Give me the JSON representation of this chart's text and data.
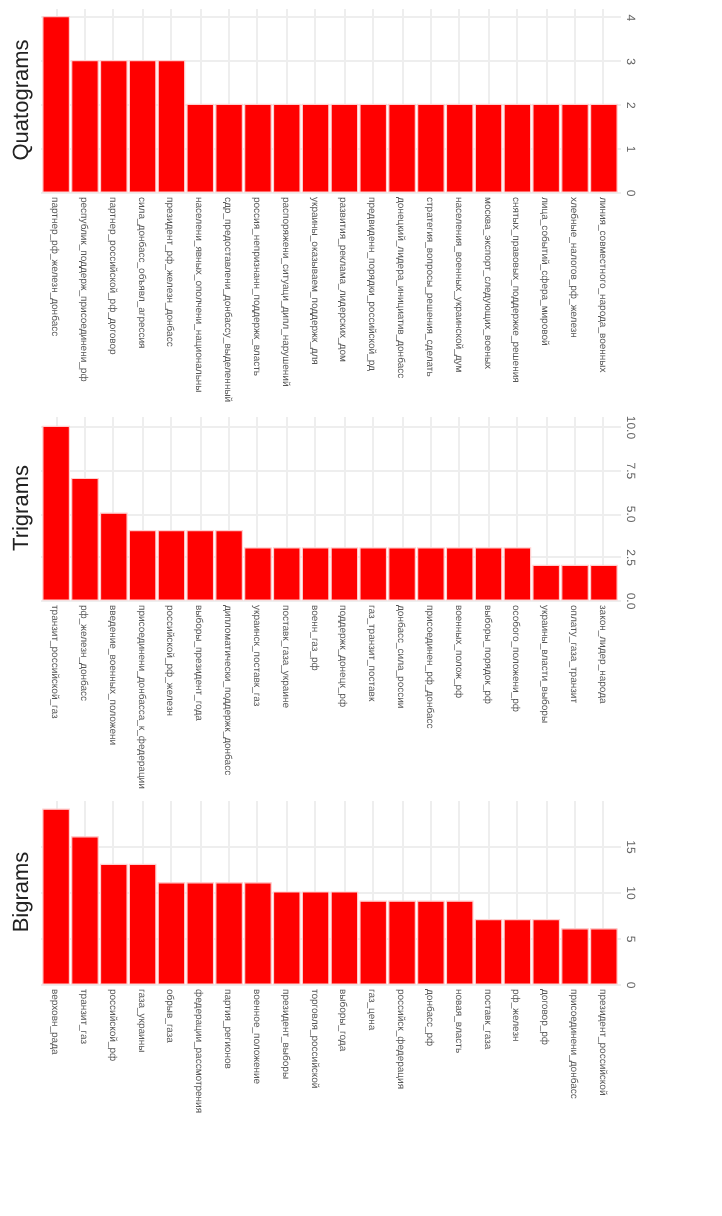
{
  "chart_data": [
    {
      "type": "bar",
      "title": "Quatograms",
      "categories": [
        "партнер_рф_железн_донбасс",
        "республик_поддерж_присоединени_рф",
        "партнер_российской_рф_договор",
        "сила_донбасс_объявл_агрессия",
        "президент_рф_железн_донбасс",
        "населени_явных_ополчени_национальны",
        "сдр_предоставлени_донбассу_выделенный",
        "россия_непризнанн_поддержк_власть",
        "распоряжени_ситуаци_дипл_нарушений",
        "украины_оказываем_поддержк_для",
        "развития_реклама_лидерских_дом",
        "предвиденн_порядки_российской_рд",
        "донецкий_лидера_инициатив_донбасс",
        "стратегия_вопросы_решения_сделать",
        "населения_военных_украинской_дум",
        "москва_экспорт_следующих_военых",
        "снятых_правовых_поддержке_решения",
        "лица_событий_сфера_мировой",
        "хлебные_налогов_рф_железн",
        "линия_совместного_народа_военных"
      ],
      "values": [
        4,
        3,
        3,
        3,
        3,
        2,
        2,
        2,
        2,
        2,
        2,
        2,
        2,
        2,
        2,
        2,
        2,
        2,
        2,
        2
      ],
      "color": "#ff0000",
      "ylim": [
        0,
        4.2
      ],
      "yticks": [
        0,
        1,
        2,
        3,
        4
      ],
      "grid": true
    },
    {
      "type": "bar",
      "title": "Trigrams",
      "categories": [
        "транзит_российской_газ",
        "рф_железн_донбасс",
        "введение_военных_положени",
        "присоединени_донбасса_к_федерации",
        "российской_рф_железн",
        "выборы_президент_года",
        "дипломатически_поддержк_донбасс",
        "украинск_поставк_газ",
        "поставк_газа_украине",
        "военн_газ_рф",
        "поддержк_донецк_рф",
        "газ_транзит_поставк",
        "донбасс_сила_россии",
        "присоединен_рф_донбасс",
        "военных_полож_рф",
        "выборы_порядок_рф",
        "особого_положени_рф",
        "украины_власти_выборы",
        "оплату_газа_транзит",
        "закон_лидер_народа"
      ],
      "values": [
        10,
        7,
        5,
        4,
        4,
        4,
        4,
        3,
        3,
        3,
        3,
        3,
        3,
        3,
        3,
        3,
        3,
        2,
        2,
        2
      ],
      "color": "#ff0000",
      "ylim": [
        0,
        10.6
      ],
      "yticks": [
        {
          "value": 0,
          "label": "0.0"
        },
        {
          "value": 2.5,
          "label": "2.5"
        },
        {
          "value": 5,
          "label": "5.0"
        },
        {
          "value": 7.5,
          "label": "7.5"
        },
        {
          "value": 10,
          "label": "10.0"
        }
      ],
      "grid": true
    },
    {
      "type": "bar",
      "title": "Bigrams",
      "categories": [
        "верховн_рада",
        "транзит_газ",
        "российской_рф",
        "газа_украины",
        "обрыв_газа",
        "федерации_рассмотрения",
        "партия_регионов",
        "военное_положение",
        "президент_выборы",
        "торговля_российской",
        "выборы_года",
        "газ_цена",
        "российск_федерация",
        "донбасс_рф",
        "новая_власть",
        "поставк_газа",
        "рф_железн",
        "договор_рф",
        "присоединени_донбасс",
        "президент_российской"
      ],
      "values": [
        19,
        16,
        13,
        13,
        11,
        11,
        11,
        11,
        10,
        10,
        10,
        9,
        9,
        9,
        9,
        7,
        7,
        7,
        6,
        6
      ],
      "color": "#ff0000",
      "ylim": [
        0,
        20
      ],
      "yticks": [
        0,
        5,
        10,
        15
      ],
      "grid": true
    }
  ]
}
